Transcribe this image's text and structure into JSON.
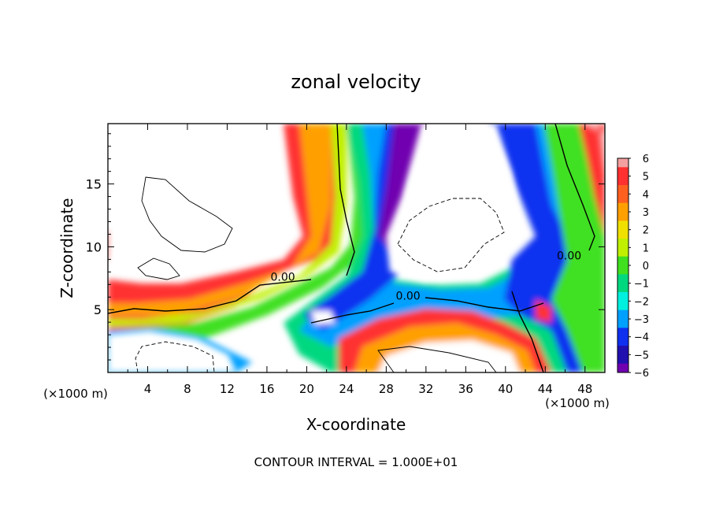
{
  "chart_data": {
    "type": "heatmap",
    "title": "zonal velocity",
    "xlabel": "X-coordinate",
    "ylabel": "Z-coordinate",
    "x_unit_left": "(×1000 m)",
    "x_unit_right": "(×1000 m)",
    "footer": "CONTOUR INTERVAL = 1.000E+01",
    "xlim": [
      0,
      50
    ],
    "ylim": [
      0,
      19.8
    ],
    "x_ticks": [
      4,
      8,
      12,
      16,
      20,
      24,
      28,
      32,
      36,
      40,
      44,
      48
    ],
    "x_tick_labels": [
      "4",
      "8",
      "12",
      "16",
      "20",
      "24",
      "28",
      "32",
      "36",
      "40",
      "44",
      "48"
    ],
    "y_ticks": [
      5,
      10,
      15
    ],
    "y_tick_labels": [
      "5",
      "10",
      "15"
    ],
    "colorbar": {
      "min": -6,
      "max": 6,
      "labels": [
        "6",
        "5",
        "4",
        "3",
        "2",
        "1",
        "0",
        "−1",
        "−2",
        "−3",
        "−4",
        "−5",
        "−6"
      ],
      "colors": [
        "#f4a0a0",
        "#ff3030",
        "#ff6020",
        "#ffa000",
        "#f0e000",
        "#c0f000",
        "#40e020",
        "#00d880",
        "#00f0e0",
        "#00a0ff",
        "#1030f0",
        "#2010b0",
        "#7000b0"
      ]
    },
    "contour_labels": [
      {
        "text": "0.00",
        "x": 17.6,
        "y": 7.3
      },
      {
        "text": "0.00",
        "x": 30.2,
        "y": 5.8
      },
      {
        "text": "0.00",
        "x": 46.4,
        "y": 9.0
      }
    ]
  }
}
